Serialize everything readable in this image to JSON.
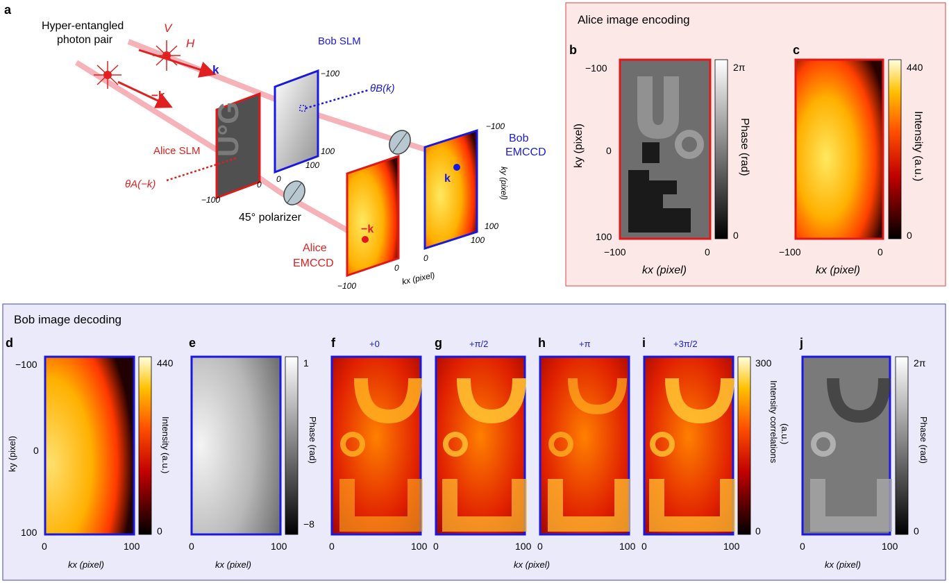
{
  "panel_a": {
    "letter": "a",
    "hyper_line1": "Hyper-entangled",
    "hyper_line2": "photon pair",
    "V": "V",
    "H": "H",
    "k": "k",
    "minus_k": "−k",
    "bob_slm": "Bob SLM",
    "theta_b": "θB(k)",
    "alice_slm": "Alice SLM",
    "theta_a": "θA(−k)",
    "polarizer": "45° polarizer",
    "bob_emccd_1": "Bob",
    "bob_emccd_2": "EMCCD",
    "alice_emccd_1": "Alice",
    "alice_emccd_2": "EMCCD",
    "kx_label": "kx (pixel)",
    "ky_label": "ky (pixel)",
    "tick_m100": "−100",
    "tick_0": "0",
    "tick_100": "100"
  },
  "top_box": {
    "title": "Alice image encoding",
    "panel_b": "b",
    "panel_c": "c",
    "ky_axis": "ky (pixel)",
    "kx_axis": "kx (pixel)",
    "ticks_y": [
      "−100",
      "0",
      "100"
    ],
    "ticks_x": [
      "−100",
      "0"
    ],
    "phase_label": "Phase (rad)",
    "phase_max": "2π",
    "phase_min": "0",
    "intensity_label": "Intensity (a.u.)",
    "int_max": "440",
    "int_min": "0"
  },
  "bottom_box": {
    "title": "Bob image decoding",
    "letters": [
      "d",
      "e",
      "f",
      "g",
      "h",
      "i",
      "j"
    ],
    "shifts": [
      "+0",
      "+π/2",
      "+π",
      "+3π/2"
    ],
    "ky_axis": "ky (pixel)",
    "kx_axis": "kx (pixel)",
    "ticks_y": [
      "−100",
      "0",
      "100"
    ],
    "ticks_x": [
      "0",
      "100"
    ],
    "d_intensity": "Intensity (a.u.)",
    "d_max": "440",
    "d_min": "0",
    "e_phase": "Phase (rad)",
    "e_max": "1",
    "e_min": "−8",
    "corr_line1": "Intensity correlations",
    "corr_line2": "(a.u.)",
    "corr_max": "300",
    "corr_min": "0",
    "j_phase": "Phase (rad)",
    "j_max": "2π",
    "j_min": "0"
  },
  "colors": {
    "red_frame": "#e01818",
    "blue_frame": "#1818e0",
    "top_bg": "#fde8e8",
    "bottom_bg": "#eaeafb"
  }
}
